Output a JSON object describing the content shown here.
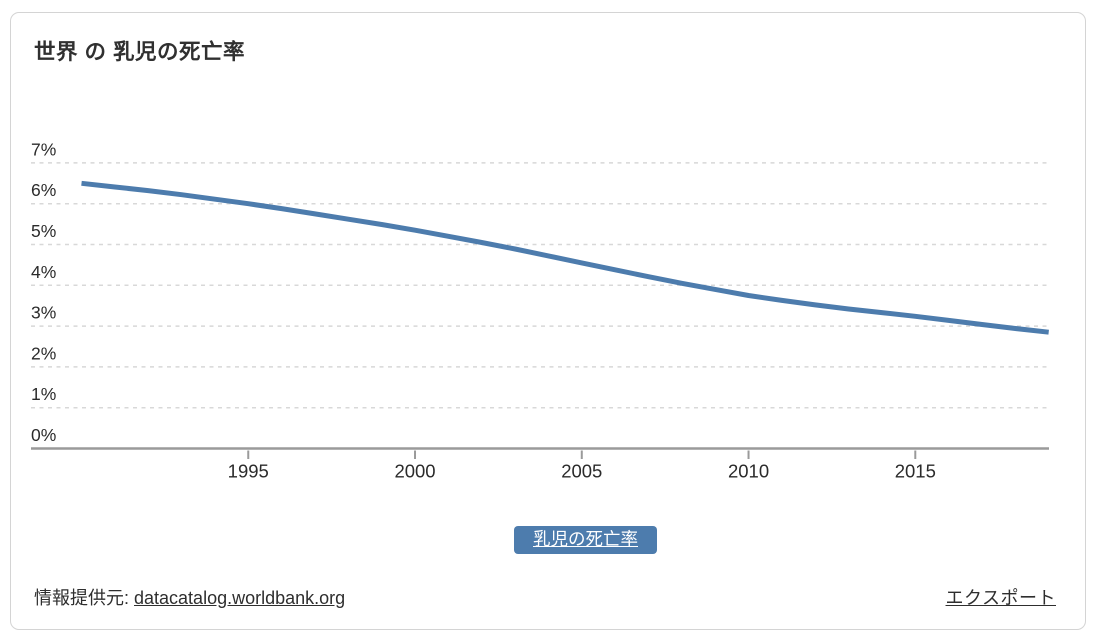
{
  "title": "世界 の 乳児の死亡率",
  "chart_data": {
    "type": "line",
    "title": "世界 の 乳児の死亡率",
    "series": [
      {
        "name": "乳児の死亡率",
        "x": [
          1990,
          1991,
          1992,
          1993,
          1994,
          1995,
          1996,
          1997,
          1998,
          1999,
          2000,
          2001,
          2002,
          2003,
          2004,
          2005,
          2006,
          2007,
          2008,
          2009,
          2010,
          2011,
          2012,
          2013,
          2014,
          2015,
          2016,
          2017,
          2018,
          2019
        ],
        "values": [
          6.5,
          6.41,
          6.32,
          6.22,
          6.11,
          6.0,
          5.88,
          5.75,
          5.62,
          5.49,
          5.35,
          5.2,
          5.05,
          4.89,
          4.72,
          4.55,
          4.38,
          4.21,
          4.05,
          3.9,
          3.75,
          3.63,
          3.52,
          3.42,
          3.33,
          3.24,
          3.14,
          3.04,
          2.94,
          2.85
        ],
        "color": "#4d7cad"
      }
    ],
    "unit": "%",
    "xlim": [
      1990,
      2019
    ],
    "ylim": [
      0,
      7
    ],
    "x_tick_years": [
      1995,
      2000,
      2005,
      2010,
      2015
    ],
    "x_tick_labels": [
      "1995",
      "2000",
      "2005",
      "2010",
      "2015"
    ],
    "y_tick_values": [
      0,
      1,
      2,
      3,
      4,
      5,
      6,
      7
    ],
    "y_tick_labels": [
      "0%",
      "1%",
      "2%",
      "3%",
      "4%",
      "5%",
      "6%",
      "7%"
    ],
    "grid": "horizontal-dashed",
    "legend_position": "bottom-center"
  },
  "legend": {
    "label": "乳児の死亡率"
  },
  "footer": {
    "source_prefix": "情報提供元: ",
    "source_link": "datacatalog.worldbank.org",
    "export_label": "エクスポート"
  },
  "colors": {
    "line": "#4d7cad",
    "legend_bg": "#4d7cad",
    "grid": "#d8d8d8",
    "axis": "#9a9a9a",
    "text": "#2b2b2b",
    "card_border": "#d4d4d4",
    "background": "#ffffff"
  }
}
